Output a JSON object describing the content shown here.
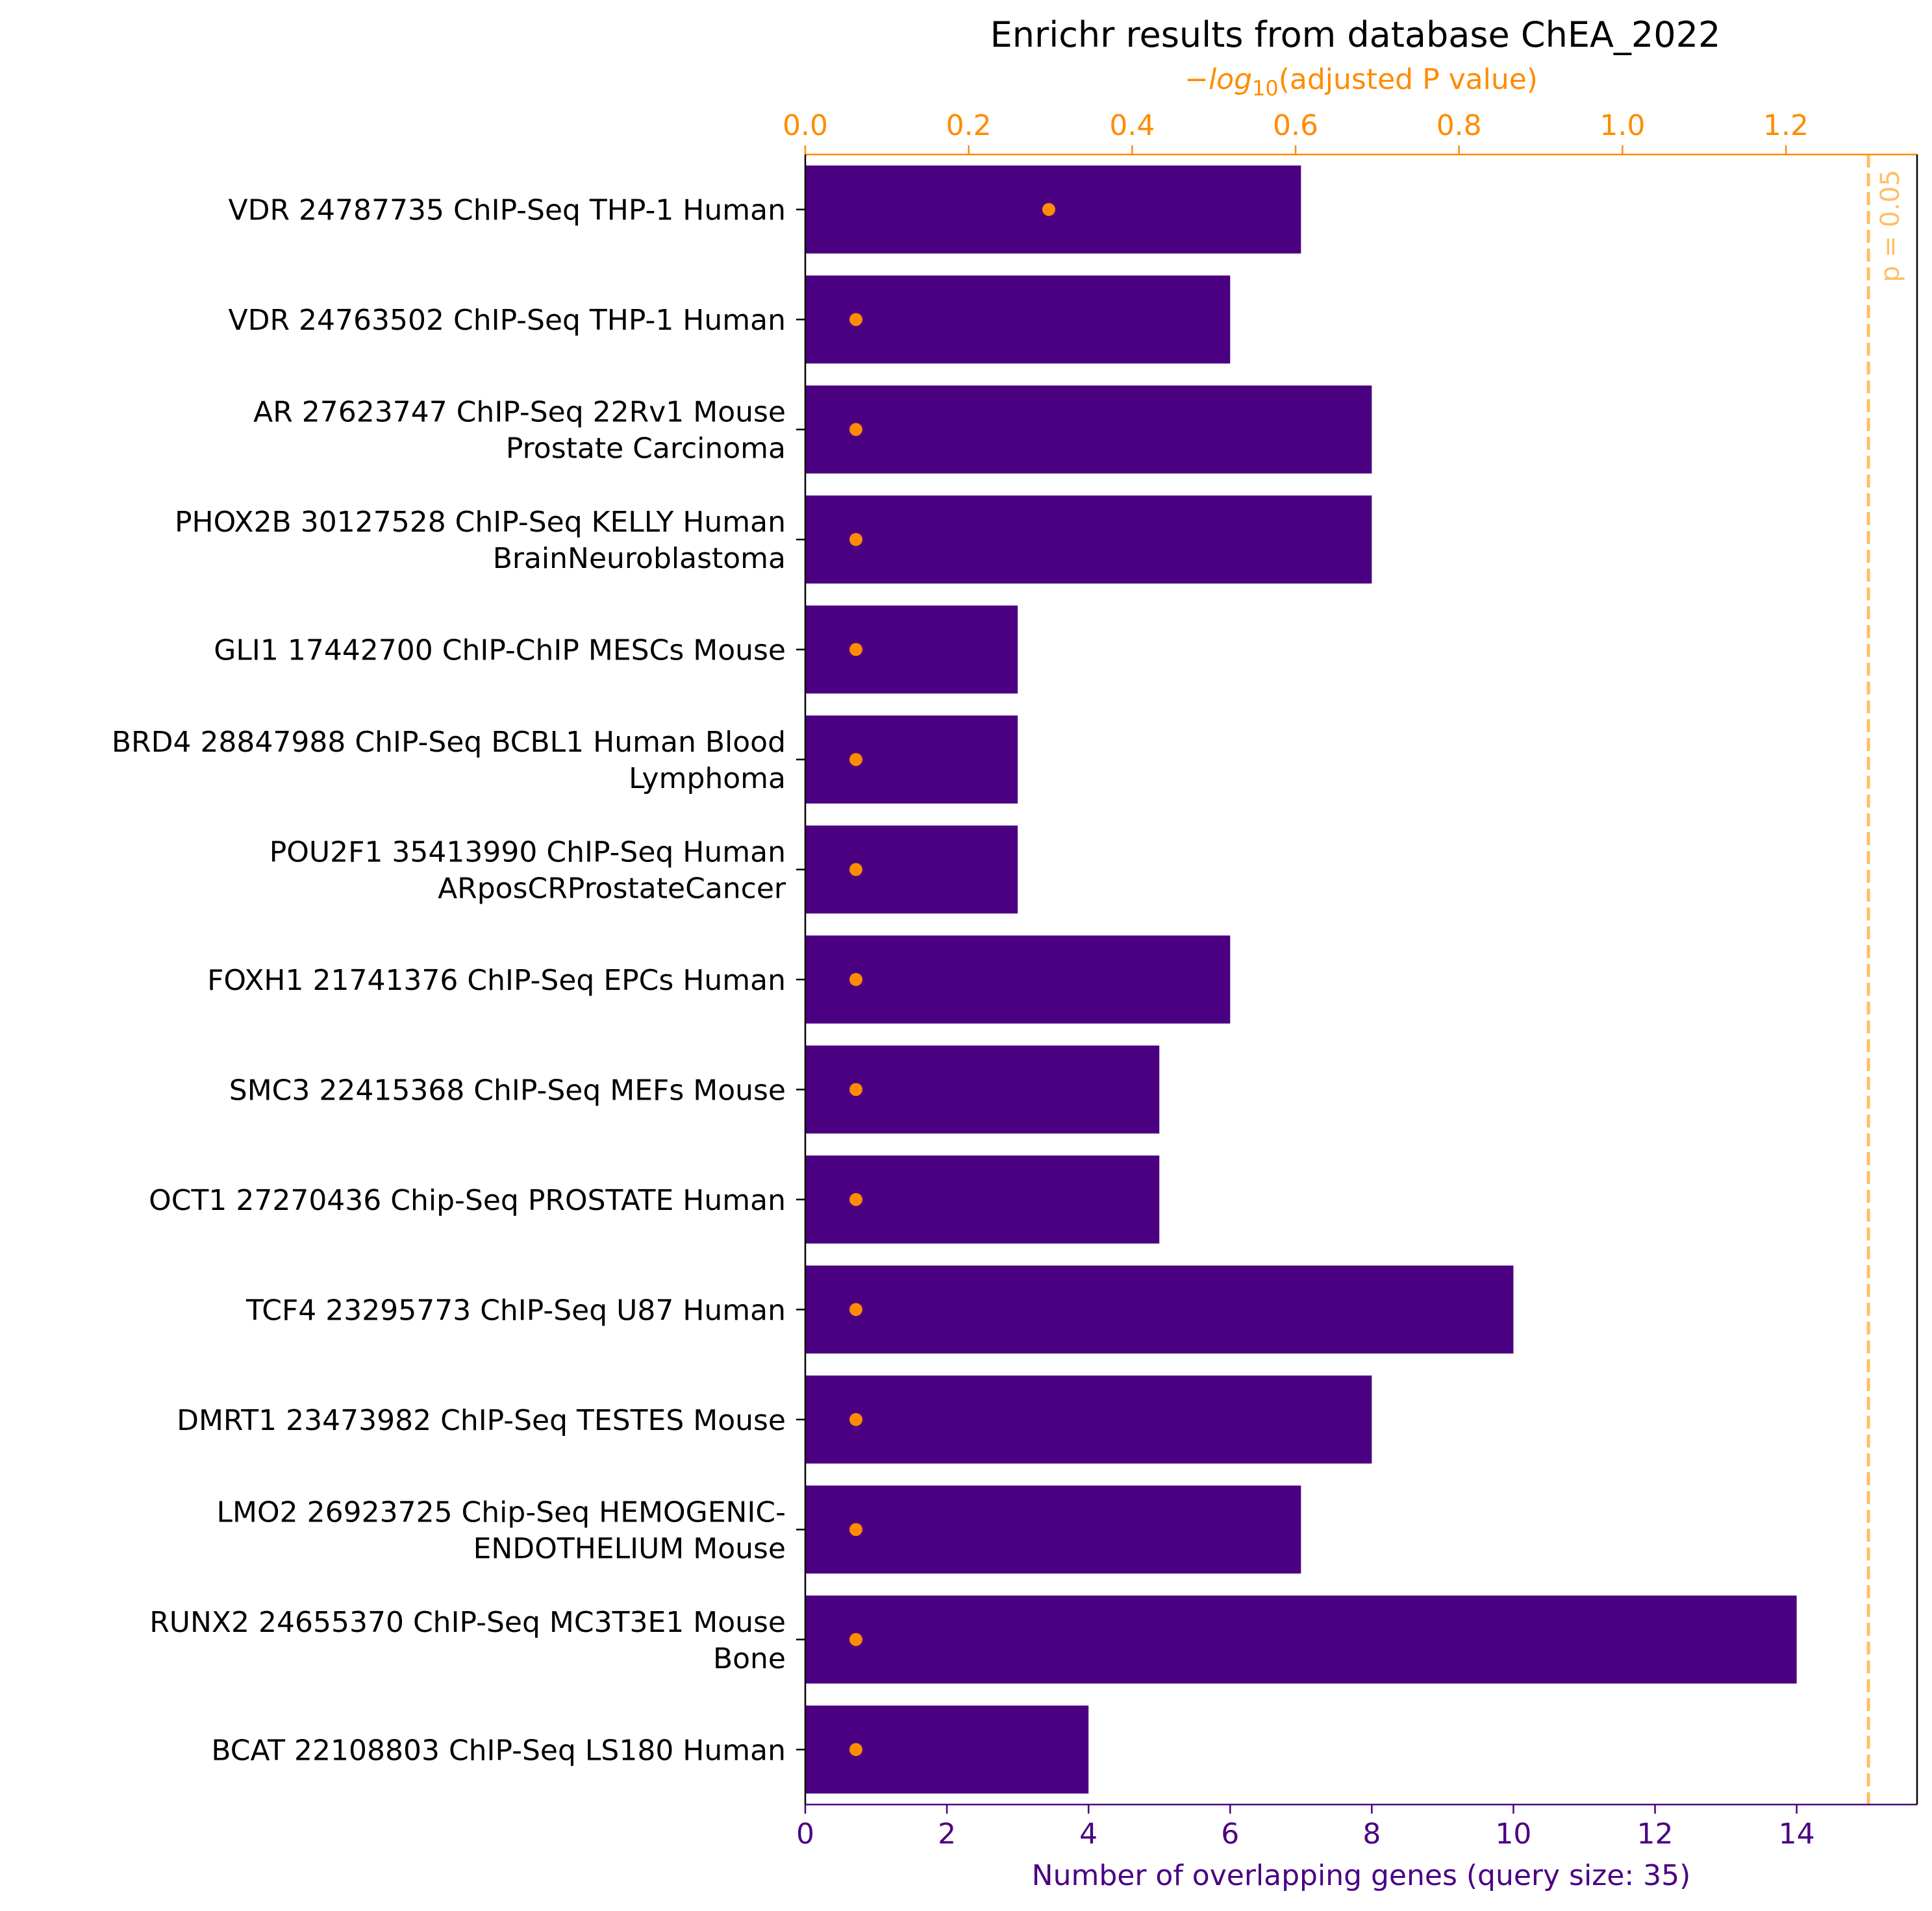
{
  "chart_data": {
    "type": "bar",
    "orientation": "horizontal",
    "title": "Enrichr results from database ChEA_2022",
    "categories": [
      [
        "VDR 24787735 ChIP-Seq THP-1 Human"
      ],
      [
        "VDR 24763502 ChIP-Seq THP-1 Human"
      ],
      [
        "AR 27623747 ChIP-Seq 22Rv1 Mouse",
        "Prostate Carcinoma"
      ],
      [
        "PHOX2B 30127528 ChIP-Seq KELLY Human",
        "BrainNeuroblastoma"
      ],
      [
        "GLI1 17442700 ChIP-ChIP MESCs Mouse"
      ],
      [
        "BRD4 28847988 ChIP-Seq BCBL1 Human Blood",
        "Lymphoma"
      ],
      [
        "POU2F1 35413990 ChIP-Seq Human",
        "ARposCRProstateCancer"
      ],
      [
        "FOXH1 21741376 ChIP-Seq EPCs Human"
      ],
      [
        "SMC3 22415368 ChIP-Seq MEFs Mouse"
      ],
      [
        "OCT1 27270436 Chip-Seq PROSTATE Human"
      ],
      [
        "TCF4 23295773 ChIP-Seq U87 Human"
      ],
      [
        "DMRT1 23473982 ChIP-Seq TESTES Mouse"
      ],
      [
        "LMO2 26923725 Chip-Seq HEMOGENIC-",
        "ENDOTHELIUM Mouse"
      ],
      [
        "RUNX2 24655370 ChIP-Seq MC3T3E1 Mouse",
        "Bone"
      ],
      [
        "BCAT 22108803 ChIP-Seq LS180 Human"
      ]
    ],
    "series": [
      {
        "name": "Number of overlapping genes",
        "axis": "bottom",
        "mark": "bar",
        "color": "#4b0082",
        "values": [
          7,
          6,
          8,
          8,
          3,
          3,
          3,
          6,
          5,
          5,
          10,
          8,
          7,
          14,
          4
        ]
      },
      {
        "name": "-log10(adjusted P value)",
        "axis": "top",
        "mark": "point",
        "color": "#ff8c00",
        "values": [
          0.298,
          0.062,
          0.062,
          0.062,
          0.062,
          0.062,
          0.062,
          0.062,
          0.062,
          0.062,
          0.062,
          0.062,
          0.062,
          0.062,
          0.062
        ]
      }
    ],
    "x_bottom": {
      "label": "Number of overlapping genes (query size: 35)",
      "ticks": [
        "0",
        "2",
        "4",
        "6",
        "8",
        "10",
        "12",
        "14"
      ],
      "tick_values": [
        0,
        2,
        4,
        6,
        8,
        10,
        12,
        14
      ],
      "range": [
        0,
        15.7
      ],
      "color": "#4b0082"
    },
    "x_top": {
      "label_prefix": "−",
      "label_italic": "log",
      "label_sub": "10",
      "label_suffix": "(adjusted P value)",
      "ticks": [
        "0.0",
        "0.2",
        "0.4",
        "0.6",
        "0.8",
        "1.0",
        "1.2"
      ],
      "tick_values": [
        0.0,
        0.2,
        0.4,
        0.6,
        0.8,
        1.0,
        1.2
      ],
      "range": [
        0,
        1.3605
      ],
      "color": "#ff8c00"
    },
    "threshold": {
      "label": "p = 0.05",
      "value": 1.301,
      "axis": "top",
      "style": "dashed",
      "color": "#ffbf66"
    },
    "grid": false,
    "legend": "none"
  }
}
